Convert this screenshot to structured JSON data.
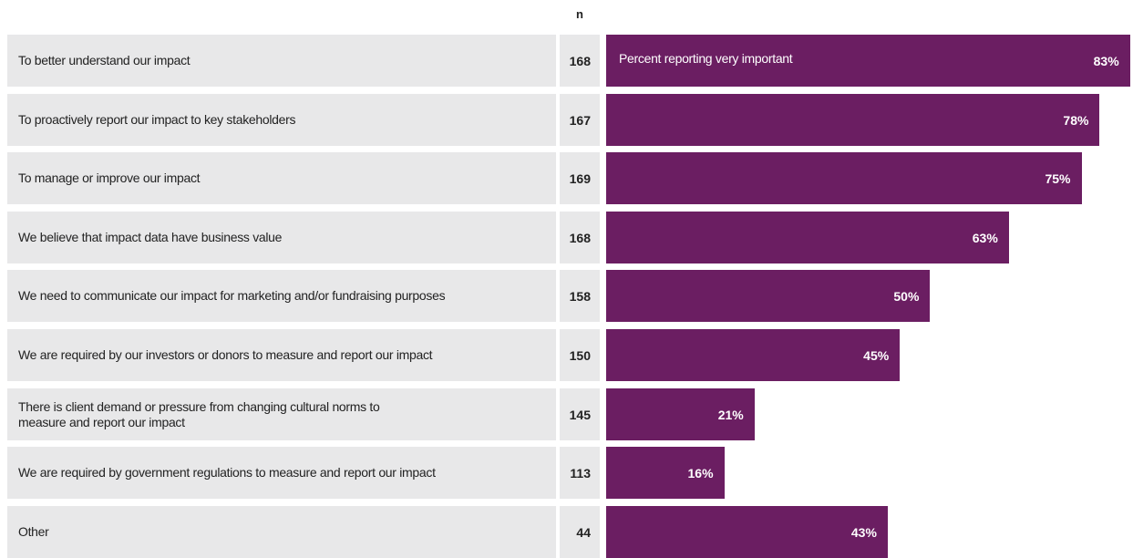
{
  "chart_data": {
    "type": "bar",
    "orientation": "horizontal",
    "annotation": "Percent reporting very important",
    "n_header": "n",
    "categories": [
      "To better understand our impact",
      "To proactively report our impact to key stakeholders",
      "To manage or improve our impact",
      "We believe that impact data have business value",
      "We need to communicate our impact for marketing and/or fundraising purposes",
      "We are required by our investors or donors to measure and report our impact",
      "There is client demand or pressure from changing cultural norms to\nmeasure and report our impact",
      "We are required by government regulations to measure and report our impact",
      "Other"
    ],
    "n": [
      168,
      167,
      169,
      168,
      158,
      150,
      145,
      113,
      44
    ],
    "values": [
      83,
      78,
      75,
      63,
      50,
      45,
      21,
      16,
      43
    ],
    "value_labels": [
      "83%",
      "78%",
      "75%",
      "63%",
      "50%",
      "45%",
      "21%",
      "16%",
      "43%"
    ],
    "color": "#6b1e62",
    "xlim": [
      -3.5,
      83.5
    ]
  }
}
